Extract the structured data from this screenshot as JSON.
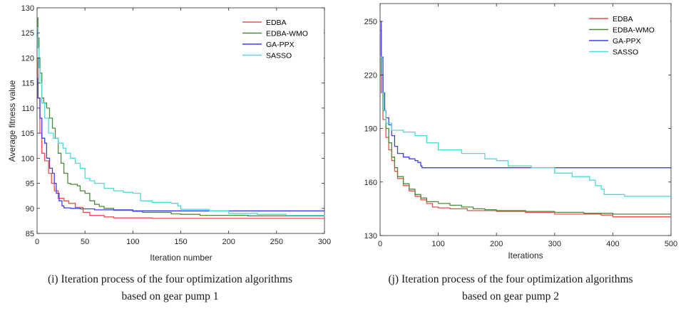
{
  "chart_data": [
    {
      "type": "line",
      "xlabel": "Iteration number",
      "ylabel": "Average fitness value",
      "xlim": [
        0,
        300
      ],
      "ylim": [
        85,
        130
      ],
      "xticks": [
        0,
        50,
        100,
        150,
        200,
        250,
        300
      ],
      "yticks": [
        85,
        90,
        95,
        100,
        105,
        110,
        115,
        120,
        125,
        130
      ],
      "grid": false,
      "legend_position": "top-right",
      "caption": [
        "(i) Iteration process of the four optimization algorithms",
        "based on gear pump 1"
      ],
      "series": [
        {
          "name": "EDBA",
          "color": "#f24d4d",
          "points": [
            [
              0,
              120
            ],
            [
              1,
              112
            ],
            [
              3,
              105
            ],
            [
              5,
              101
            ],
            [
              8,
              99.5
            ],
            [
              12,
              97
            ],
            [
              15,
              95
            ],
            [
              18,
              93.5
            ],
            [
              22,
              92
            ],
            [
              28,
              91.5
            ],
            [
              33,
              91
            ],
            [
              40,
              90.2
            ],
            [
              48,
              89.2
            ],
            [
              55,
              88.6
            ],
            [
              70,
              88.3
            ],
            [
              80,
              88.1
            ],
            [
              120,
              88.0
            ],
            [
              200,
              88.0
            ],
            [
              300,
              87.9
            ]
          ]
        },
        {
          "name": "EDBA-WMO",
          "color": "#4c8a3c",
          "points": [
            [
              0,
              128
            ],
            [
              1,
              124
            ],
            [
              2,
              120
            ],
            [
              3,
              117
            ],
            [
              5,
              112
            ],
            [
              7,
              111
            ],
            [
              10,
              110
            ],
            [
              13,
              108
            ],
            [
              16,
              106
            ],
            [
              19,
              104
            ],
            [
              22,
              101
            ],
            [
              25,
              99
            ],
            [
              28,
              97
            ],
            [
              32,
              95
            ],
            [
              35,
              94.8
            ],
            [
              42,
              94.5
            ],
            [
              45,
              93.5
            ],
            [
              50,
              93
            ],
            [
              55,
              91.5
            ],
            [
              60,
              90.8
            ],
            [
              65,
              90.4
            ],
            [
              70,
              90.0
            ],
            [
              80,
              89.6
            ],
            [
              100,
              89.4
            ],
            [
              110,
              89.2
            ],
            [
              140,
              88.9
            ],
            [
              150,
              88.8
            ],
            [
              170,
              88.6
            ],
            [
              220,
              88.5
            ],
            [
              300,
              88.5
            ]
          ]
        },
        {
          "name": "GA-PPX",
          "color": "#3d3df2",
          "points": [
            [
              0,
              116
            ],
            [
              1,
              112
            ],
            [
              3,
              108
            ],
            [
              5,
              104
            ],
            [
              8,
              103
            ],
            [
              10,
              100
            ],
            [
              13,
              98
            ],
            [
              16,
              97
            ],
            [
              18,
              95
            ],
            [
              20,
              93
            ],
            [
              23,
              91.5
            ],
            [
              26,
              90.5
            ],
            [
              28,
              90.1
            ],
            [
              35,
              90.0
            ],
            [
              45,
              89.9
            ],
            [
              60,
              89.7
            ],
            [
              100,
              89.5
            ],
            [
              300,
              89.5
            ]
          ]
        },
        {
          "name": "SASSO",
          "color": "#4fd9d9",
          "points": [
            [
              0,
              126
            ],
            [
              1,
              122
            ],
            [
              2,
              118
            ],
            [
              3,
              115
            ],
            [
              5,
              111
            ],
            [
              8,
              108
            ],
            [
              12,
              105
            ],
            [
              17,
              104
            ],
            [
              22,
              103
            ],
            [
              27,
              102
            ],
            [
              30,
              101
            ],
            [
              35,
              100
            ],
            [
              40,
              99
            ],
            [
              45,
              98
            ],
            [
              50,
              96
            ],
            [
              55,
              95.5
            ],
            [
              60,
              95
            ],
            [
              70,
              94
            ],
            [
              80,
              93.5
            ],
            [
              90,
              93.2
            ],
            [
              100,
              93
            ],
            [
              105,
              93
            ],
            [
              108,
              91.5
            ],
            [
              120,
              91.2
            ],
            [
              140,
              91
            ],
            [
              147,
              90.5
            ],
            [
              150,
              89.8
            ],
            [
              180,
              89.5
            ],
            [
              200,
              89
            ],
            [
              230,
              88.8
            ],
            [
              260,
              88.6
            ],
            [
              300,
              88.4
            ]
          ]
        }
      ]
    },
    {
      "type": "line",
      "xlabel": "Iterations",
      "ylabel": "",
      "xlim": [
        0,
        500
      ],
      "ylim": [
        130,
        260
      ],
      "xticks": [
        0,
        100,
        200,
        300,
        400,
        500
      ],
      "yticks": [
        130,
        160,
        190,
        220,
        250
      ],
      "grid": false,
      "legend_position": "top-right",
      "caption": [
        "(j) Iteration process of the four optimization algorithms",
        "based on gear pump 2"
      ],
      "series": [
        {
          "name": "EDBA",
          "color": "#f24d4d",
          "points": [
            [
              0,
              230
            ],
            [
              2,
              210
            ],
            [
              5,
              195
            ],
            [
              10,
              185
            ],
            [
              15,
              178
            ],
            [
              20,
              172
            ],
            [
              25,
              166
            ],
            [
              30,
              162
            ],
            [
              40,
              158
            ],
            [
              50,
              155
            ],
            [
              60,
              152
            ],
            [
              70,
              150
            ],
            [
              80,
              148
            ],
            [
              90,
              146
            ],
            [
              100,
              145.5
            ],
            [
              120,
              145
            ],
            [
              150,
              144
            ],
            [
              200,
              143.5
            ],
            [
              250,
              143
            ],
            [
              300,
              142
            ],
            [
              380,
              141.5
            ],
            [
              400,
              140.5
            ],
            [
              500,
              140.5
            ]
          ]
        },
        {
          "name": "EDBA-WMO",
          "color": "#4c8a3c",
          "points": [
            [
              0,
              245
            ],
            [
              2,
              220
            ],
            [
              5,
              200
            ],
            [
              10,
              190
            ],
            [
              15,
              182
            ],
            [
              20,
              174
            ],
            [
              25,
              168
            ],
            [
              30,
              163
            ],
            [
              40,
              159
            ],
            [
              50,
              156
            ],
            [
              60,
              153
            ],
            [
              70,
              151
            ],
            [
              80,
              149
            ],
            [
              100,
              148
            ],
            [
              120,
              147
            ],
            [
              140,
              146
            ],
            [
              160,
              145
            ],
            [
              180,
              144.5
            ],
            [
              200,
              144
            ],
            [
              250,
              143.5
            ],
            [
              300,
              143
            ],
            [
              350,
              142.5
            ],
            [
              400,
              142
            ],
            [
              500,
              142
            ]
          ]
        },
        {
          "name": "GA-PPX",
          "color": "#3d3df2",
          "points": [
            [
              0,
              250
            ],
            [
              2,
              230
            ],
            [
              5,
              210
            ],
            [
              8,
              200
            ],
            [
              10,
              196
            ],
            [
              15,
              192
            ],
            [
              20,
              186
            ],
            [
              25,
              180
            ],
            [
              30,
              176
            ],
            [
              40,
              174
            ],
            [
              50,
              173
            ],
            [
              60,
              172
            ],
            [
              65,
              171
            ],
            [
              70,
              169
            ],
            [
              72,
              168
            ],
            [
              500,
              168
            ]
          ]
        },
        {
          "name": "SASSO",
          "color": "#4fd9d9",
          "points": [
            [
              0,
              230
            ],
            [
              3,
              210
            ],
            [
              6,
              200
            ],
            [
              10,
              193
            ],
            [
              20,
              189
            ],
            [
              40,
              188
            ],
            [
              60,
              186
            ],
            [
              80,
              182
            ],
            [
              100,
              178
            ],
            [
              140,
              176
            ],
            [
              180,
              173
            ],
            [
              200,
              172
            ],
            [
              220,
              169
            ],
            [
              260,
              168
            ],
            [
              300,
              165
            ],
            [
              330,
              163
            ],
            [
              360,
              161
            ],
            [
              370,
              158
            ],
            [
              380,
              156
            ],
            [
              385,
              153
            ],
            [
              420,
              152
            ],
            [
              480,
              152
            ],
            [
              500,
              152
            ]
          ]
        }
      ]
    }
  ]
}
